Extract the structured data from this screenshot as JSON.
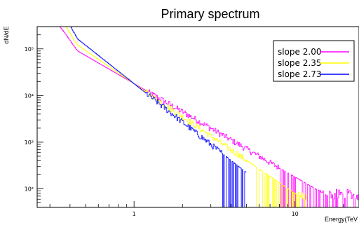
{
  "chart_data": {
    "type": "line",
    "style": "step-histogram",
    "title": "Primary spectrum",
    "xlabel": "Energy(TeV",
    "ylabel": "dN/dE",
    "x_scale": "log",
    "y_scale": "log",
    "xlim": [
      0.25,
      25
    ],
    "ylim": [
      40,
      300000
    ],
    "grid": false,
    "legend_position": "top-right",
    "x_ticks": [
      {
        "value": 1,
        "label": "1"
      },
      {
        "value": 10,
        "label": "10"
      }
    ],
    "y_ticks": [
      {
        "value": 100,
        "label": "10²"
      },
      {
        "value": 1000,
        "label": "10³"
      },
      {
        "value": 10000,
        "label": "10⁴"
      },
      {
        "value": 100000,
        "label": "10⁵"
      }
    ],
    "series": [
      {
        "name": "slope 2.00",
        "color": "#ff00ff",
        "slope": 2.0,
        "amplitude": 18000,
        "noise_floor": 70,
        "noise_start": 8,
        "x_end": 25
      },
      {
        "name": "slope 2.35",
        "color": "#ffff00",
        "slope": 2.35,
        "amplitude": 18000,
        "noise_floor": 60,
        "noise_start": 5,
        "x_end": 12
      },
      {
        "name": "slope 2.73",
        "color": "#0000ff",
        "slope": 2.73,
        "amplitude": 18000,
        "noise_floor": 50,
        "noise_start": 3.5,
        "x_end": 5
      }
    ]
  }
}
